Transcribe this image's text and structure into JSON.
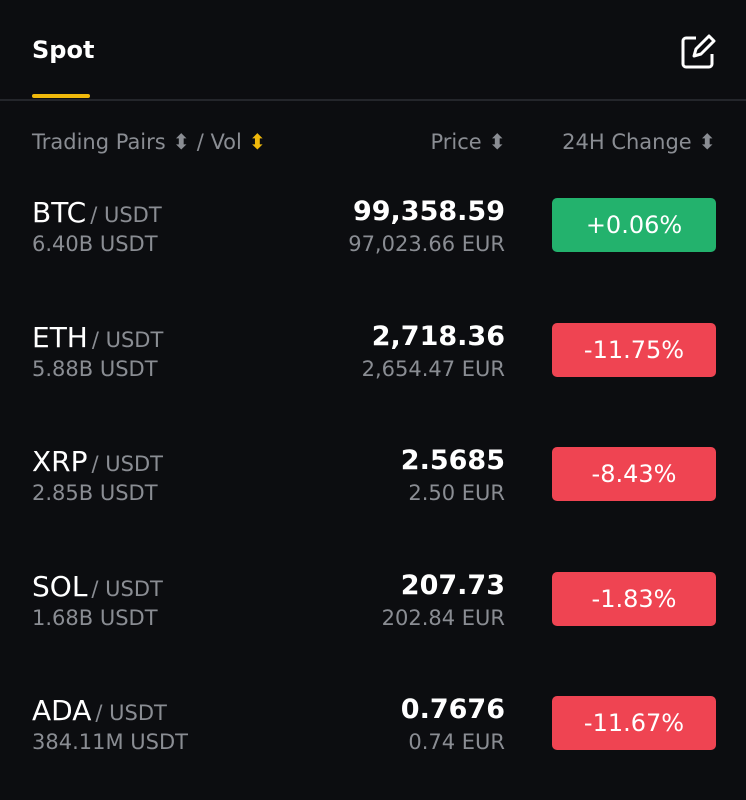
{
  "tab": "Spot",
  "header": {
    "pairs": "Trading Pairs",
    "sep": "/ Vol",
    "price": "Price",
    "change": "24H Change"
  },
  "rows": [
    {
      "base": "BTC",
      "quote": "/ USDT",
      "vol": "6.40B USDT",
      "price": "99,358.59",
      "fiat": "97,023.66 EUR",
      "change": "+0.06%",
      "up": true
    },
    {
      "base": "ETH",
      "quote": "/ USDT",
      "vol": "5.88B USDT",
      "price": "2,718.36",
      "fiat": "2,654.47 EUR",
      "change": "-11.75%",
      "up": false
    },
    {
      "base": "XRP",
      "quote": "/ USDT",
      "vol": "2.85B USDT",
      "price": "2.5685",
      "fiat": "2.50 EUR",
      "change": "-8.43%",
      "up": false
    },
    {
      "base": "SOL",
      "quote": "/ USDT",
      "vol": "1.68B USDT",
      "price": "207.73",
      "fiat": "202.84 EUR",
      "change": "-1.83%",
      "up": false
    },
    {
      "base": "ADA",
      "quote": "/ USDT",
      "vol": "384.11M USDT",
      "price": "0.7676",
      "fiat": "0.74 EUR",
      "change": "-11.67%",
      "up": false
    }
  ]
}
